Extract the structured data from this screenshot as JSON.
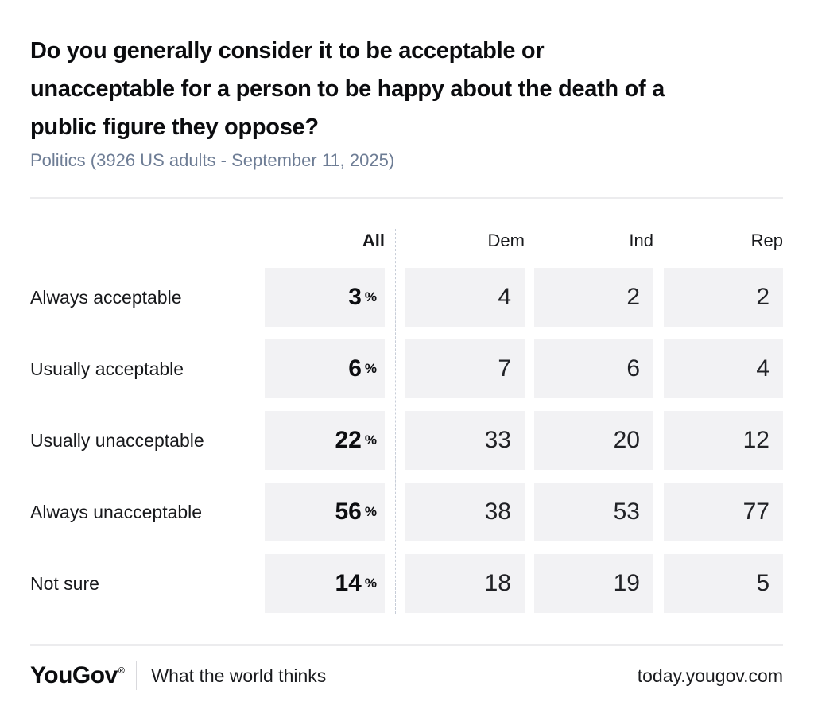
{
  "page": {
    "title_lines": [
      "Do you generally consider it to be acceptable or",
      "unacceptable for a person to be happy about the death of a",
      "public figure they oppose?"
    ],
    "subtitle": "Politics (3926 US adults - September 11, 2025)"
  },
  "table": {
    "columns": [
      "All",
      "Dem",
      "Ind",
      "Rep"
    ],
    "percent_sign": "%",
    "rows": [
      {
        "label": "Always acceptable",
        "all": "3",
        "dem": "4",
        "ind": "2",
        "rep": "2"
      },
      {
        "label": "Usually acceptable",
        "all": "6",
        "dem": "7",
        "ind": "6",
        "rep": "4"
      },
      {
        "label": "Usually unacceptable",
        "all": "22",
        "dem": "33",
        "ind": "20",
        "rep": "12"
      },
      {
        "label": "Always unacceptable",
        "all": "56",
        "dem": "38",
        "ind": "53",
        "rep": "77"
      },
      {
        "label": "Not sure",
        "all": "14",
        "dem": "18",
        "ind": "19",
        "rep": "5"
      }
    ]
  },
  "footer": {
    "logo": "YouGov",
    "registered_mark": "®",
    "tagline": "What the world thinks",
    "url": "today.yougov.com"
  },
  "colors": {
    "subtitle_text": "#6e7d95",
    "cell_background": "#f2f2f4",
    "title_text": "#0b0c0f",
    "dashed_divider": "#c7cdd8",
    "rule": "#ececee"
  },
  "chart_data": {
    "type": "table",
    "title": "Do you generally consider it to be acceptable or unacceptable for a person to be happy about the death of a public figure they oppose?",
    "subtitle": "Politics (3926 US adults - September 11, 2025)",
    "categories": [
      "Always acceptable",
      "Usually acceptable",
      "Usually unacceptable",
      "Always unacceptable",
      "Not sure"
    ],
    "series": [
      {
        "name": "All",
        "unit": "%",
        "values": [
          3,
          6,
          22,
          56,
          14
        ]
      },
      {
        "name": "Dem",
        "values": [
          4,
          7,
          33,
          38,
          18
        ]
      },
      {
        "name": "Ind",
        "values": [
          2,
          6,
          20,
          53,
          19
        ]
      },
      {
        "name": "Rep",
        "values": [
          2,
          4,
          12,
          77,
          5
        ]
      }
    ]
  }
}
